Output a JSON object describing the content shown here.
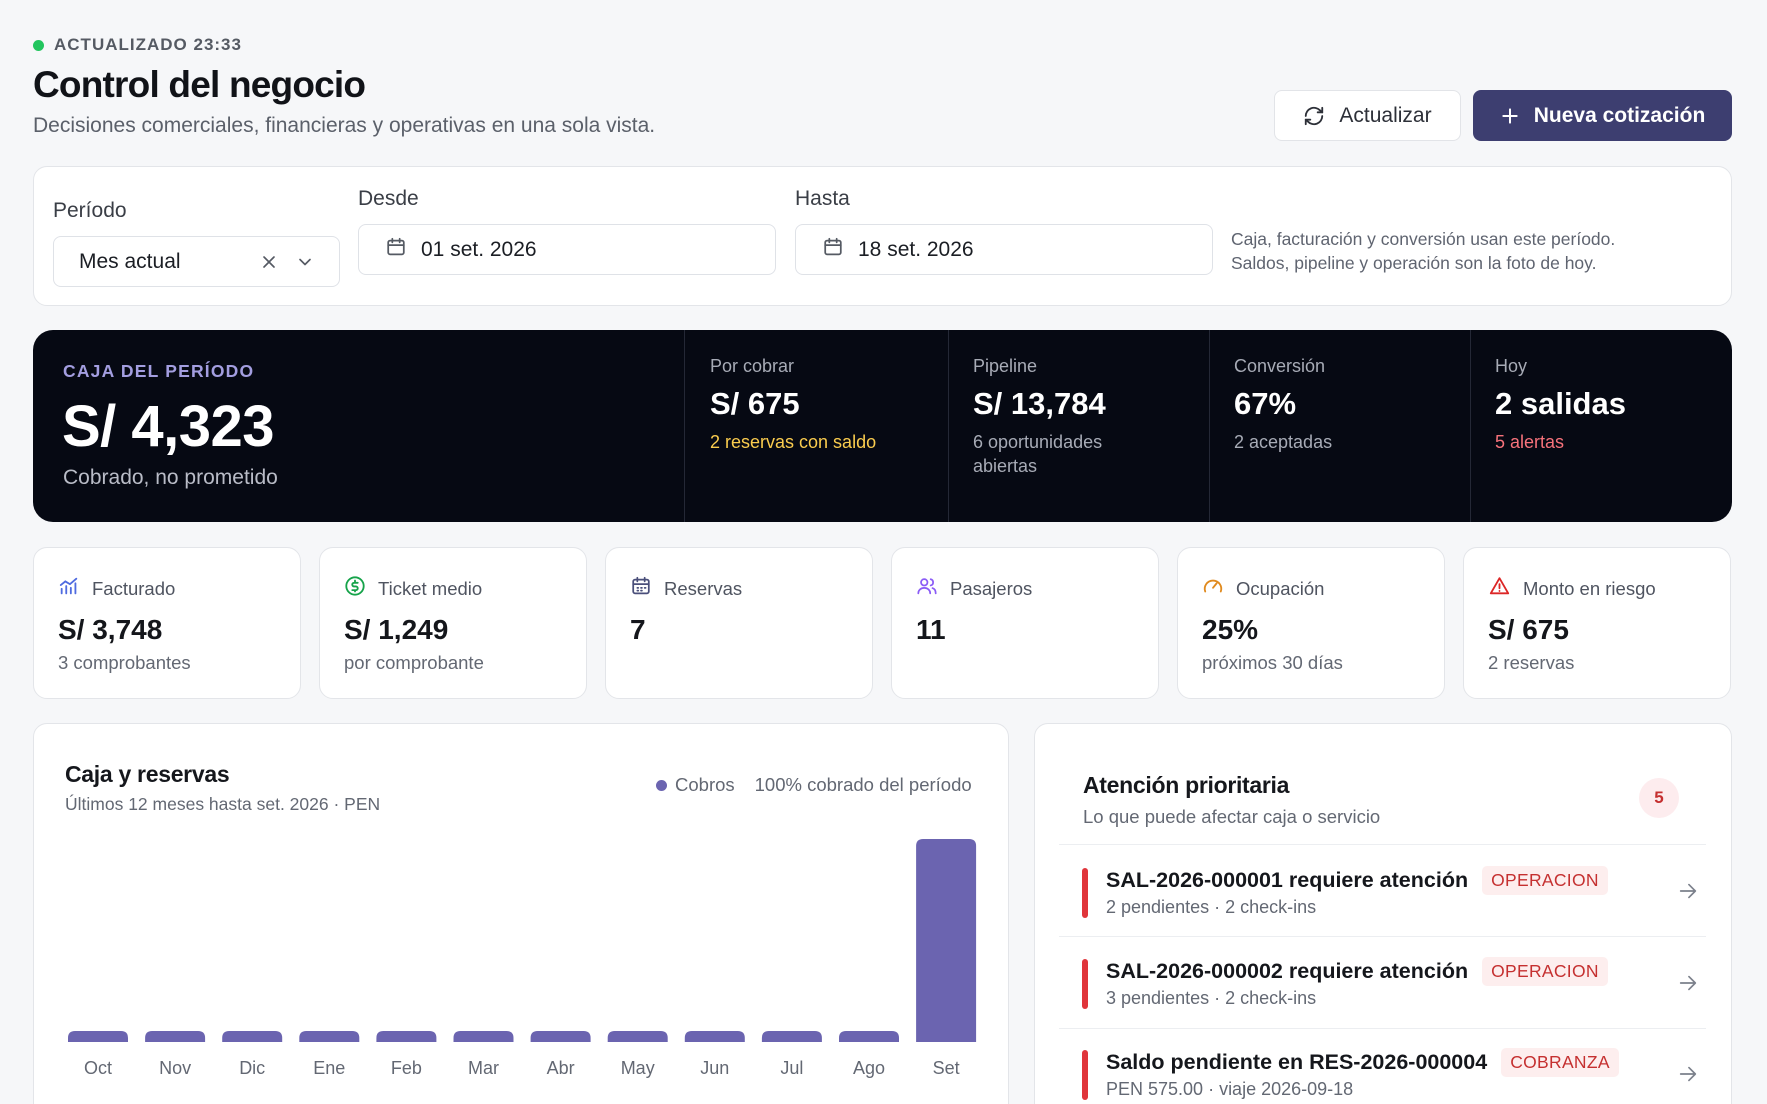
{
  "header": {
    "status_text": "ACTUALIZADO 23:33",
    "title": "Control del negocio",
    "subtitle": "Decisiones comerciales, financieras y operativas en una sola vista.",
    "refresh_label": "Actualizar",
    "new_quote_label": "Nueva cotización"
  },
  "filters": {
    "period_label": "Período",
    "period_value": "Mes actual",
    "from_label": "Desde",
    "from_value": "01 set. 2026",
    "to_label": "Hasta",
    "to_value": "18 set. 2026",
    "note_line1": "Caja, facturación y conversión usan este período.",
    "note_line2": "Saldos, pipeline y operación son la foto de hoy."
  },
  "hero": {
    "kicker": "CAJA DEL PERÍODO",
    "value": "S/ 4,323",
    "sub": "Cobrado, no prometido",
    "metrics": [
      {
        "label": "Por cobrar",
        "value": "S/ 675",
        "sub": "2 reservas con saldo",
        "sub_color": "#facc4e"
      },
      {
        "label": "Pipeline",
        "value": "S/ 13,784",
        "sub": "6 oportunidades abiertas",
        "sub_color": "#a7abb6"
      },
      {
        "label": "Conversión",
        "value": "67%",
        "sub": "2 aceptadas",
        "sub_color": "#a7abb6"
      },
      {
        "label": "Hoy",
        "value": "2 salidas",
        "sub": "5 alertas",
        "sub_color": "#f7727b"
      }
    ]
  },
  "kpis": [
    {
      "icon": "bar-chart-icon",
      "label": "Facturado",
      "value": "S/ 3,748",
      "sub": "3 comprobantes",
      "color": "#4f6be0"
    },
    {
      "icon": "dollar-circle-icon",
      "label": "Ticket medio",
      "value": "S/ 1,249",
      "sub": "por comprobante",
      "color": "#16a34a"
    },
    {
      "icon": "calendar-icon",
      "label": "Reservas",
      "value": "7",
      "sub": "",
      "color": "#4a4f7a"
    },
    {
      "icon": "users-icon",
      "label": "Pasajeros",
      "value": "11",
      "sub": "",
      "color": "#8b5cf6"
    },
    {
      "icon": "gauge-icon",
      "label": "Ocupación",
      "value": "25%",
      "sub": "próximos 30 días",
      "color": "#e08a1e"
    },
    {
      "icon": "alert-triangle-icon",
      "label": "Monto en riesgo",
      "value": "S/ 675",
      "sub": "2 reservas",
      "color": "#dc2626"
    }
  ],
  "chart_card": {
    "title": "Caja y reservas",
    "subtitle": "Últimos 12 meses hasta set. 2026 · PEN",
    "legend_label": "Cobros",
    "legend_note": "100% cobrado del período"
  },
  "chart_data": {
    "type": "bar",
    "categories": [
      "Oct",
      "Nov",
      "Dic",
      "Ene",
      "Feb",
      "Mar",
      "Abr",
      "May",
      "Jun",
      "Jul",
      "Ago",
      "Set"
    ],
    "series": [
      {
        "name": "Cobros",
        "values": [
          0,
          0,
          0,
          0,
          0,
          0,
          0,
          0,
          0,
          0,
          0,
          4323
        ]
      }
    ],
    "bar_color": "#6b64b0",
    "grid": false
  },
  "attention": {
    "title": "Atención prioritaria",
    "subtitle": "Lo que puede afectar caja o servicio",
    "count": "5",
    "items": [
      {
        "title": "SAL-2026-000001 requiere atención",
        "tag": "OPERACION",
        "sub": "2 pendientes · 2 check-ins"
      },
      {
        "title": "SAL-2026-000002 requiere atención",
        "tag": "OPERACION",
        "sub": "3 pendientes · 2 check-ins"
      },
      {
        "title": "Saldo pendiente en RES-2026-000004",
        "tag": "COBRANZA",
        "sub": "PEN 575.00 · viaje 2026-09-18"
      }
    ]
  }
}
